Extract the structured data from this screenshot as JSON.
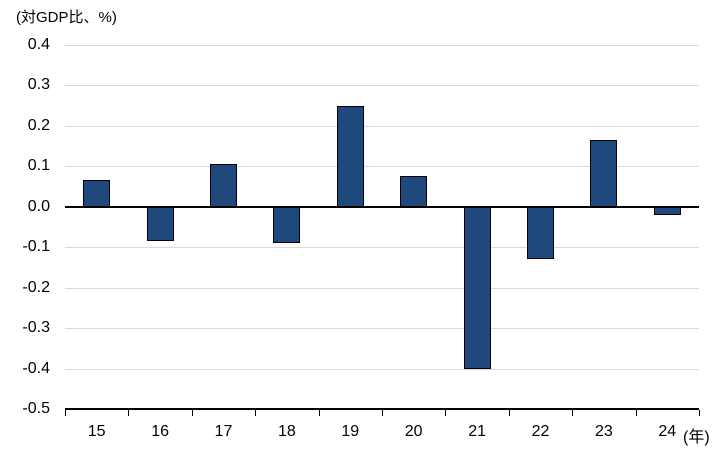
{
  "chart_data": {
    "type": "bar",
    "title": "(対GDP比、%)",
    "categories": [
      "15",
      "16",
      "17",
      "18",
      "19",
      "20",
      "21",
      "22",
      "23",
      "24"
    ],
    "values": [
      0.065,
      -0.085,
      0.105,
      -0.09,
      0.25,
      0.075,
      -0.4,
      -0.13,
      0.165,
      -0.02
    ],
    "x_axis_unit": "(年)",
    "y_ticks": [
      "0.4",
      "0.3",
      "0.2",
      "0.1",
      "0.0",
      "-0.1",
      "-0.2",
      "-0.3",
      "-0.4",
      "-0.5"
    ],
    "ylim": [
      -0.5,
      0.4
    ],
    "xlabel": "",
    "ylabel": "",
    "grid": true,
    "legend_position": "none",
    "colors": {
      "bar_fill": "#1f497d",
      "bar_border": "#000000",
      "gridline": "#d9d9d9",
      "axis": "#000000",
      "text": "#000000"
    }
  }
}
